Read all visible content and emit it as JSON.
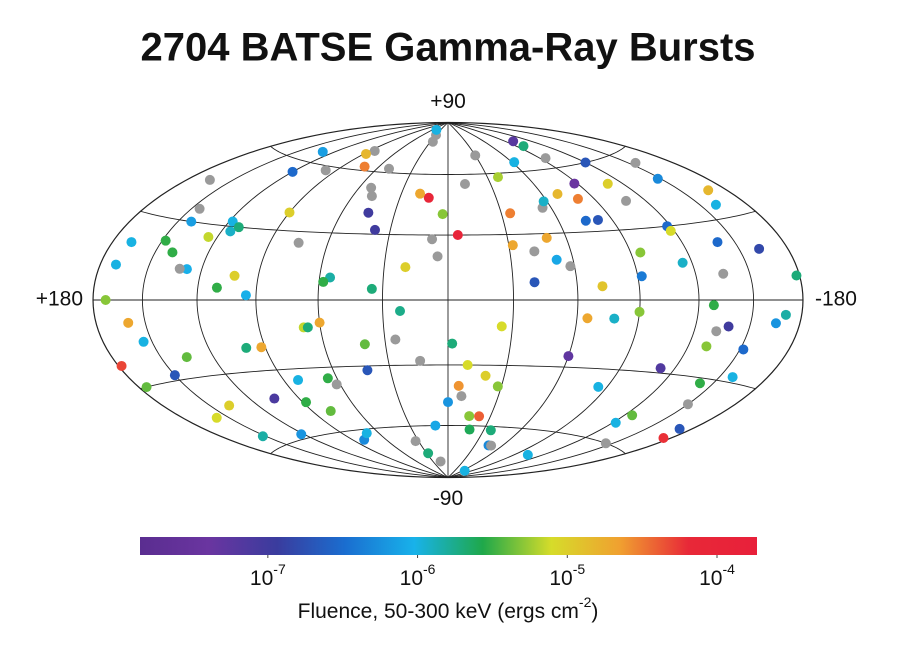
{
  "chart_data": {
    "type": "scatter",
    "projection": "hammer",
    "title": "2704 BATSE Gamma-Ray Bursts",
    "xlim": [
      180,
      -180
    ],
    "ylim": [
      -90,
      90
    ],
    "xticks": [
      {
        "value": 180,
        "label": "+180"
      },
      {
        "value": -180,
        "label": "-180"
      }
    ],
    "yticks": [
      {
        "value": 90,
        "label": "+90"
      },
      {
        "value": -90,
        "label": "-90"
      }
    ],
    "grid_lon": [
      -150,
      -120,
      -90,
      -60,
      -30,
      0,
      30,
      60,
      90,
      120,
      150
    ],
    "grid_lat": [
      -60,
      -30,
      0,
      30,
      60
    ],
    "missing_color": "#9a9a9a",
    "colorbar": {
      "clim": [
        1.4e-08,
        0.000185
      ],
      "log": true,
      "colormap": [
        "#5a2d90",
        "#6a35a0",
        "#3a3c9e",
        "#1a6ed0",
        "#18b2ea",
        "#1fa84a",
        "#d6dc2a",
        "#f0a030",
        "#e82838",
        "#e8203a"
      ],
      "ticks": [
        {
          "value": 1e-07,
          "label": "10",
          "exponent": "-7"
        },
        {
          "value": 1e-06,
          "label": "10",
          "exponent": "-6"
        },
        {
          "value": 1e-05,
          "label": "10",
          "exponent": "-5"
        },
        {
          "value": 0.0001,
          "label": "10",
          "exponent": "-4"
        }
      ],
      "label": "Fluence, 50-300 keV (ergs cm",
      "label_exponent": "-2",
      "label_end": ")"
    },
    "x": [
      170,
      -150,
      120,
      -95,
      60,
      -30,
      10,
      -5,
      35,
      -60,
      145,
      -170,
      88,
      -120,
      20,
      -45,
      75,
      -10,
      155,
      -80,
      100,
      -135,
      45,
      -15,
      130,
      -65,
      5,
      -160,
      65,
      -100,
      175,
      -110,
      25,
      -40,
      115,
      -175,
      80,
      -55,
      140,
      -25,
      50,
      -85,
      160,
      -140,
      15,
      -70,
      95,
      -125,
      38,
      -2,
      125,
      -155,
      70,
      -35,
      150,
      -90,
      30,
      -115,
      105,
      -50,
      0,
      -178,
      85,
      -20,
      135,
      -75,
      55,
      -145,
      12,
      -105,
      165,
      -130,
      42,
      -62,
      110,
      -8,
      90,
      -165,
      28,
      -88,
      152,
      -42,
      68,
      -118,
      18,
      -158,
      98,
      -28,
      128,
      -72,
      58,
      -138,
      8,
      -98,
      178,
      -52,
      78,
      -12,
      118,
      -168,
      33,
      -82,
      148,
      -122,
      62,
      -38,
      92,
      -148,
      22,
      -58,
      138,
      -92,
      48,
      -18,
      168,
      -112,
      72,
      -132,
      3,
      -78,
      112,
      -48,
      158,
      -162,
      40,
      -108,
      82,
      -32,
      122,
      -142,
      52,
      -68,
      102,
      -172,
      26,
      -128,
      142,
      -22,
      66,
      -95,
      172,
      -58,
      14,
      -152,
      88,
      -36,
      132,
      -118,
      46,
      -6
    ],
    "y": [
      12,
      -40,
      55,
      20,
      -10,
      70,
      -60,
      30,
      5,
      -25,
      35,
      -5,
      -45,
      60,
      15,
      -70,
      25,
      -30,
      -15,
      45,
      -20,
      10,
      40,
      -55,
      65,
      -8,
      20,
      35,
      -35,
      75,
      -30,
      50,
      -18,
      8,
      28,
      -52,
      -65,
      42,
      18,
      -12,
      62,
      -38,
      -8,
      22,
      -80,
      48,
      2,
      -48,
      32,
      -20,
      25,
      55,
      -62,
      40,
      -28,
      -5,
      82,
      15,
      -42,
      28,
      -48,
      8,
      70,
      -35,
      -22,
      35,
      10,
      -60,
      48,
      -72,
      45,
      -18,
      -32,
      65,
      5,
      -45,
      38,
      -8,
      -75,
      52,
      -55,
      22,
      -12,
      30,
      50,
      -28,
      58,
      -40,
      12,
      6,
      8,
      -10,
      28,
      72,
      -22,
      18,
      -50,
      55,
      32,
      40,
      -68,
      35,
      22,
      -52,
      -38,
      58,
      -20,
      48,
      -5,
      15,
      -42,
      10,
      48,
      -62,
      20,
      -28,
      62,
      -12,
      40,
      -8,
      30,
      -70,
      -45,
      18,
      -20,
      42,
      -35,
      25,
      -58,
      -32,
      52,
      -85,
      10,
      -48,
      78,
      -2,
      30,
      -55,
      -12,
      65,
      0,
      45,
      -28,
      -18,
      68,
      -62,
      12,
      28,
      85,
      -40
    ],
    "values": [
      1e-06,
      null,
      3e-07,
      5e-06,
      2e-05,
      null,
      8e-07,
      0.0001,
      2e-06,
      5e-08,
      null,
      1.5e-06,
      3e-06,
      2e-07,
      1e-05,
      5e-07,
      null,
      8e-06,
      1e-06,
      3e-05,
      2e-06,
      null,
      1e-07,
      5e-06,
      7e-07,
      2e-05,
      null,
      1e-06,
      3e-06,
      6e-08,
      4e-06,
      1e-05,
      null,
      2e-07,
      1.2e-06,
      6e-05,
      5e-07,
      null,
      3e-06,
      8e-06,
      null,
      1e-06,
      2e-05,
      3e-07,
      null,
      1.5e-05,
      9e-07,
      4e-06,
      1e-07,
      2e-06,
      7e-06,
      null,
      1e-06,
      3e-05,
      2e-07,
      5e-06,
      null,
      1.2e-06,
      8e-08,
      2e-05,
      6e-07,
      2e-06,
      null,
      1e-05,
      4e-06,
      3e-07,
      1.5e-06,
      null,
      8e-05,
      1e-06,
      null,
      5e-06,
      2e-07,
      1e-06,
      3e-06,
      null,
      1e-05,
      6e-07,
      2e-06,
      4e-08,
      1.5e-06,
      null,
      7e-06,
      3e-07,
      2e-05,
      1e-06,
      null,
      5e-06,
      9e-07,
      1.2e-05,
      3e-06,
      1e-07,
      null,
      2e-06,
      5e-05,
      8e-07,
      4e-06,
      null,
      1e-06,
      1.5e-05,
      null,
      2e-07,
      3e-06,
      1e-06,
      null,
      6e-06,
      2e-05,
      5e-07,
      1.8e-06,
      null,
      1e-05,
      4e-07,
      null,
      2.5e-06,
      1e-06,
      7e-08,
      3e-05,
      null,
      5e-06,
      1.2e-06,
      2e-06,
      null,
      8e-06,
      1.5e-07,
      4e-06,
      null,
      1e-06,
      2e-05,
      6e-07,
      3e-06,
      null,
      1e-06,
      1e-05,
      2e-07,
      null,
      3e-06,
      7e-07,
      4e-05,
      2e-06,
      null,
      5e-06,
      1.2e-06,
      null,
      3e-07,
      1.5e-05,
      2e-06,
      null,
      8e-06,
      1e-06,
      2.5e-05
    ]
  }
}
